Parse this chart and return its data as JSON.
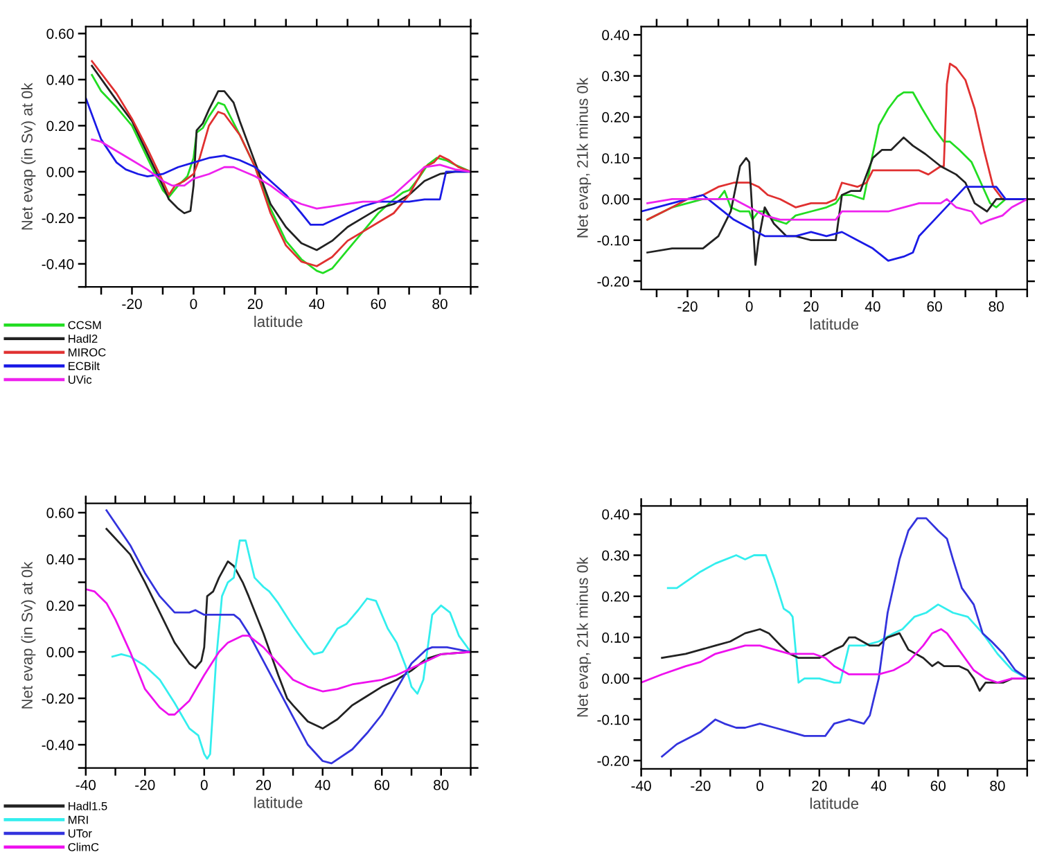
{
  "chart_data": [
    {
      "type": "line",
      "xlabel": "latitude",
      "ylabel": "Net evap (in Sv) at 0k",
      "xlim": [
        -35,
        90
      ],
      "ylim": [
        -0.5,
        0.63
      ],
      "xticks": [
        {
          "value": -30,
          "label": null
        },
        -20,
        {
          "value": -10,
          "label": null
        },
        0,
        {
          "value": 10,
          "label": null
        },
        20,
        {
          "value": 30,
          "label": null
        },
        40,
        {
          "value": 50,
          "label": null
        },
        60,
        {
          "value": 70,
          "label": null
        },
        80,
        {
          "value": 90,
          "label": null
        }
      ],
      "yticks": [
        {
          "value": -0.5,
          "label": null
        },
        {
          "value": -0.4,
          "label": "-0.40"
        },
        {
          "value": -0.3,
          "label": null
        },
        {
          "value": -0.2,
          "label": "-0.20"
        },
        {
          "value": -0.1,
          "label": null
        },
        {
          "value": 0,
          "label": "0.00"
        },
        {
          "value": 0.1,
          "label": null
        },
        {
          "value": 0.2,
          "label": "0.20"
        },
        {
          "value": 0.3,
          "label": null
        },
        {
          "value": 0.4,
          "label": "0.40"
        },
        {
          "value": 0.5,
          "label": null
        },
        {
          "value": 0.6,
          "label": "0.60"
        }
      ],
      "legend": "bottom left",
      "series": [
        {
          "name": "CCSM",
          "color": "#22dd22",
          "x": [
            -33,
            -30,
            -25,
            -20,
            -15,
            -10,
            -8,
            -5,
            -2,
            0,
            1,
            3,
            5,
            8,
            10,
            15,
            20,
            25,
            30,
            35,
            40,
            42,
            45,
            50,
            55,
            60,
            65,
            68,
            70,
            73,
            76,
            79,
            82,
            85,
            90
          ],
          "values": [
            0.42,
            0.35,
            0.28,
            0.2,
            0.06,
            -0.08,
            -0.11,
            -0.06,
            -0.02,
            0.06,
            0.17,
            0.19,
            0.24,
            0.3,
            0.29,
            0.16,
            0.02,
            -0.16,
            -0.3,
            -0.38,
            -0.43,
            -0.44,
            -0.42,
            -0.34,
            -0.26,
            -0.18,
            -0.12,
            -0.09,
            -0.08,
            -0.03,
            0.03,
            0.06,
            0.05,
            0.03,
            0.0
          ]
        },
        {
          "name": "Hadl2",
          "color": "#222222",
          "x": [
            -33,
            -25,
            -20,
            -15,
            -10,
            -8,
            -5,
            -3,
            -1,
            0,
            1,
            3,
            5,
            8,
            10,
            13,
            15,
            20,
            25,
            30,
            35,
            40,
            45,
            50,
            55,
            60,
            65,
            70,
            75,
            80,
            85,
            90
          ],
          "values": [
            0.46,
            0.31,
            0.22,
            0.08,
            -0.06,
            -0.12,
            -0.16,
            -0.18,
            -0.17,
            -0.06,
            0.18,
            0.21,
            0.27,
            0.35,
            0.35,
            0.3,
            0.22,
            0.04,
            -0.14,
            -0.24,
            -0.31,
            -0.34,
            -0.3,
            -0.24,
            -0.2,
            -0.16,
            -0.14,
            -0.1,
            -0.04,
            -0.01,
            0.0,
            0.0
          ]
        },
        {
          "name": "MIROC",
          "color": "#e03030",
          "x": [
            -33,
            -25,
            -20,
            -15,
            -10,
            -8,
            -6,
            -3,
            0,
            2,
            5,
            8,
            10,
            15,
            20,
            25,
            30,
            35,
            40,
            45,
            50,
            55,
            60,
            65,
            70,
            75,
            78,
            80,
            83,
            86,
            90
          ],
          "values": [
            0.48,
            0.34,
            0.23,
            0.1,
            -0.04,
            -0.1,
            -0.06,
            -0.04,
            -0.01,
            0.06,
            0.2,
            0.26,
            0.25,
            0.16,
            0.02,
            -0.18,
            -0.32,
            -0.39,
            -0.41,
            -0.37,
            -0.3,
            -0.26,
            -0.22,
            -0.18,
            -0.1,
            0.02,
            0.04,
            0.07,
            0.05,
            0.02,
            0.0
          ]
        },
        {
          "name": "ECBilt",
          "color": "#1a1ae6",
          "x": [
            -35,
            -30,
            -25,
            -22,
            -18,
            -15,
            -10,
            -5,
            0,
            5,
            10,
            15,
            20,
            25,
            30,
            35,
            38,
            42,
            50,
            55,
            60,
            65,
            70,
            75,
            80,
            82,
            90
          ],
          "values": [
            0.32,
            0.14,
            0.04,
            0.01,
            -0.01,
            -0.02,
            -0.01,
            0.02,
            0.04,
            0.06,
            0.07,
            0.05,
            0.02,
            -0.04,
            -0.1,
            -0.18,
            -0.23,
            -0.23,
            -0.18,
            -0.15,
            -0.13,
            -0.13,
            -0.13,
            -0.12,
            -0.12,
            0.0,
            0.0
          ]
        },
        {
          "name": "UVic",
          "color": "#ee22ee",
          "x": [
            -33,
            -30,
            -25,
            -20,
            -15,
            -10,
            -7,
            -3,
            0,
            5,
            10,
            13,
            20,
            25,
            30,
            35,
            40,
            45,
            50,
            55,
            60,
            65,
            70,
            75,
            80,
            85,
            90
          ],
          "values": [
            0.14,
            0.13,
            0.09,
            0.05,
            0.01,
            -0.04,
            -0.06,
            -0.06,
            -0.03,
            -0.01,
            0.02,
            0.02,
            -0.02,
            -0.06,
            -0.11,
            -0.14,
            -0.16,
            -0.15,
            -0.14,
            -0.13,
            -0.13,
            -0.1,
            -0.04,
            0.02,
            0.03,
            0.01,
            0.0
          ]
        }
      ]
    },
    {
      "type": "line",
      "xlabel": "latitude",
      "ylabel": "Net evap, 21k minus 0k",
      "xlim": [
        -35,
        90
      ],
      "ylim": [
        -0.22,
        0.42
      ],
      "xticks": [
        {
          "value": -30,
          "label": null
        },
        -20,
        {
          "value": -10,
          "label": null
        },
        0,
        {
          "value": 10,
          "label": null
        },
        20,
        {
          "value": 30,
          "label": null
        },
        40,
        {
          "value": 50,
          "label": null
        },
        60,
        {
          "value": 70,
          "label": null
        },
        80,
        {
          "value": 90,
          "label": null
        }
      ],
      "yticks": [
        {
          "value": -0.2,
          "label": "-0.20"
        },
        {
          "value": -0.15,
          "label": null
        },
        {
          "value": -0.1,
          "label": "-0.10"
        },
        {
          "value": -0.05,
          "label": null
        },
        {
          "value": 0,
          "label": "0.00"
        },
        {
          "value": 0.05,
          "label": null
        },
        {
          "value": 0.1,
          "label": "0.10"
        },
        {
          "value": 0.15,
          "label": null
        },
        {
          "value": 0.2,
          "label": "0.20"
        },
        {
          "value": 0.25,
          "label": null
        },
        {
          "value": 0.3,
          "label": "0.30"
        },
        {
          "value": 0.35,
          "label": null
        },
        {
          "value": 0.4,
          "label": "0.40"
        }
      ],
      "series": [
        {
          "color": "#22dd22",
          "x": [
            -33,
            -25,
            -20,
            -15,
            -10,
            -8,
            -6,
            -3,
            0,
            1,
            3,
            5,
            8,
            12,
            15,
            20,
            25,
            28,
            30,
            33,
            37,
            40,
            42,
            45,
            48,
            50,
            53,
            56,
            60,
            63,
            65,
            68,
            72,
            75,
            78,
            80,
            83,
            90
          ],
          "values": [
            -0.05,
            -0.02,
            -0.01,
            0.0,
            0.0,
            0.02,
            -0.02,
            -0.03,
            -0.03,
            -0.05,
            -0.03,
            -0.03,
            -0.05,
            -0.06,
            -0.04,
            -0.03,
            -0.02,
            -0.01,
            0.01,
            0.01,
            0.0,
            0.11,
            0.18,
            0.22,
            0.25,
            0.26,
            0.26,
            0.22,
            0.17,
            0.14,
            0.14,
            0.12,
            0.09,
            0.04,
            -0.01,
            -0.02,
            0.0,
            0.0
          ]
        },
        {
          "color": "#e03030",
          "x": [
            -33,
            -25,
            -20,
            -15,
            -10,
            -5,
            0,
            3,
            6,
            10,
            15,
            20,
            25,
            28,
            30,
            35,
            38,
            40,
            45,
            50,
            55,
            58,
            62,
            63,
            64,
            65,
            67,
            70,
            73,
            76,
            79,
            82,
            90
          ],
          "values": [
            -0.05,
            -0.02,
            0.0,
            0.01,
            0.03,
            0.04,
            0.04,
            0.03,
            0.01,
            0.0,
            -0.02,
            -0.01,
            -0.01,
            0.0,
            0.04,
            0.03,
            0.04,
            0.07,
            0.07,
            0.07,
            0.07,
            0.06,
            0.08,
            0.08,
            0.28,
            0.33,
            0.32,
            0.29,
            0.22,
            0.12,
            0.03,
            0.0,
            0.0
          ]
        },
        {
          "color": "#222222",
          "x": [
            -33,
            -25,
            -20,
            -15,
            -10,
            -6,
            -3,
            -1,
            0,
            2,
            3,
            5,
            8,
            12,
            15,
            20,
            25,
            28,
            30,
            33,
            36,
            40,
            43,
            46,
            50,
            53,
            57,
            62,
            67,
            70,
            73,
            77,
            80,
            90
          ],
          "values": [
            -0.13,
            -0.12,
            -0.12,
            -0.12,
            -0.09,
            -0.03,
            0.08,
            0.1,
            0.09,
            -0.16,
            -0.1,
            -0.02,
            -0.06,
            -0.09,
            -0.09,
            -0.1,
            -0.1,
            -0.1,
            0.01,
            0.02,
            0.02,
            0.1,
            0.12,
            0.12,
            0.15,
            0.13,
            0.11,
            0.08,
            0.06,
            0.04,
            -0.01,
            -0.03,
            0.0,
            0.0
          ]
        },
        {
          "color": "#1a1ae6",
          "x": [
            -35,
            -30,
            -25,
            -20,
            -15,
            -10,
            -5,
            0,
            5,
            10,
            15,
            20,
            25,
            30,
            35,
            40,
            45,
            50,
            53,
            55,
            60,
            65,
            70,
            72,
            80,
            83,
            90
          ],
          "values": [
            -0.03,
            -0.02,
            -0.01,
            0.0,
            0.01,
            -0.02,
            -0.05,
            -0.07,
            -0.09,
            -0.09,
            -0.09,
            -0.08,
            -0.09,
            -0.08,
            -0.1,
            -0.12,
            -0.15,
            -0.14,
            -0.13,
            -0.09,
            -0.05,
            -0.01,
            0.03,
            0.03,
            0.03,
            0.0,
            0.0
          ]
        },
        {
          "color": "#ee22ee",
          "x": [
            -33,
            -25,
            -20,
            -15,
            -10,
            -5,
            0,
            5,
            10,
            15,
            20,
            25,
            28,
            30,
            40,
            45,
            50,
            55,
            60,
            62,
            64,
            67,
            72,
            75,
            78,
            82,
            85,
            90
          ],
          "values": [
            -0.01,
            0.0,
            0.0,
            0.0,
            0.0,
            0.0,
            -0.02,
            -0.04,
            -0.05,
            -0.05,
            -0.05,
            -0.05,
            -0.05,
            -0.03,
            -0.03,
            -0.03,
            -0.02,
            -0.01,
            -0.01,
            -0.01,
            0.0,
            -0.02,
            -0.03,
            -0.06,
            -0.05,
            -0.04,
            -0.02,
            0.0
          ]
        }
      ]
    },
    {
      "type": "line",
      "xlabel": "latitude",
      "ylabel": "Net evap (in Sv) at 0k",
      "xlim": [
        -40,
        90
      ],
      "ylim": [
        -0.5,
        0.64
      ],
      "xticks": [
        -40,
        {
          "value": -30,
          "label": null
        },
        -20,
        {
          "value": -10,
          "label": null
        },
        0,
        {
          "value": 10,
          "label": null
        },
        20,
        {
          "value": 30,
          "label": null
        },
        40,
        {
          "value": 50,
          "label": null
        },
        60,
        {
          "value": 70,
          "label": null
        },
        80,
        {
          "value": 90,
          "label": null
        }
      ],
      "yticks": [
        {
          "value": -0.5,
          "label": null
        },
        {
          "value": -0.4,
          "label": "-0.40"
        },
        {
          "value": -0.3,
          "label": null
        },
        {
          "value": -0.2,
          "label": "-0.20"
        },
        {
          "value": -0.1,
          "label": null
        },
        {
          "value": 0,
          "label": "0.00"
        },
        {
          "value": 0.1,
          "label": null
        },
        {
          "value": 0.2,
          "label": "0.20"
        },
        {
          "value": 0.3,
          "label": null
        },
        {
          "value": 0.4,
          "label": "0.40"
        },
        {
          "value": 0.5,
          "label": null
        },
        {
          "value": 0.6,
          "label": "0.60"
        }
      ],
      "legend": "bottom left",
      "series": [
        {
          "name": "Hadl1.5",
          "color": "#222222",
          "x": [
            -33,
            -25,
            -20,
            -15,
            -10,
            -5,
            -3,
            -1,
            0,
            1,
            3,
            5,
            8,
            10,
            13,
            15,
            20,
            25,
            28,
            30,
            35,
            40,
            45,
            50,
            55,
            60,
            65,
            70,
            75,
            80,
            90
          ],
          "values": [
            0.53,
            0.42,
            0.3,
            0.17,
            0.04,
            -0.05,
            -0.07,
            -0.04,
            0.02,
            0.24,
            0.26,
            0.32,
            0.39,
            0.37,
            0.3,
            0.24,
            0.08,
            -0.1,
            -0.2,
            -0.23,
            -0.3,
            -0.33,
            -0.29,
            -0.23,
            -0.19,
            -0.15,
            -0.12,
            -0.08,
            -0.03,
            -0.01,
            0.0
          ]
        },
        {
          "name": "MRI",
          "color": "#33eeee",
          "x": [
            -31,
            -28,
            -25,
            -20,
            -15,
            -10,
            -5,
            -2,
            0,
            1,
            2,
            4,
            6,
            8,
            10,
            12,
            14,
            17,
            20,
            22,
            25,
            30,
            35,
            37,
            40,
            45,
            48,
            52,
            55,
            58,
            62,
            65,
            68,
            70,
            72,
            74,
            77,
            80,
            83,
            86,
            90
          ],
          "values": [
            -0.02,
            -0.01,
            -0.02,
            -0.06,
            -0.12,
            -0.22,
            -0.33,
            -0.36,
            -0.44,
            -0.46,
            -0.44,
            -0.04,
            0.24,
            0.3,
            0.32,
            0.48,
            0.48,
            0.32,
            0.28,
            0.26,
            0.21,
            0.11,
            0.02,
            -0.01,
            0.0,
            0.1,
            0.12,
            0.18,
            0.23,
            0.22,
            0.1,
            0.04,
            -0.06,
            -0.15,
            -0.18,
            -0.12,
            0.16,
            0.2,
            0.17,
            0.07,
            0.0
          ]
        },
        {
          "name": "UTor",
          "color": "#3333dd",
          "x": [
            -33,
            -25,
            -20,
            -15,
            -10,
            -5,
            -3,
            0,
            5,
            10,
            12,
            15,
            20,
            25,
            30,
            35,
            40,
            43,
            50,
            55,
            60,
            65,
            70,
            75,
            77,
            82,
            90
          ],
          "values": [
            0.61,
            0.46,
            0.34,
            0.24,
            0.17,
            0.17,
            0.18,
            0.16,
            0.16,
            0.16,
            0.14,
            0.08,
            -0.04,
            -0.16,
            -0.28,
            -0.4,
            -0.47,
            -0.48,
            -0.42,
            -0.35,
            -0.27,
            -0.16,
            -0.05,
            0.01,
            0.02,
            0.02,
            0.0
          ]
        },
        {
          "name": "ClimC",
          "color": "#ee11ee",
          "x": [
            -40,
            -37,
            -33,
            -30,
            -25,
            -20,
            -15,
            -12,
            -10,
            -5,
            0,
            5,
            8,
            13,
            15,
            20,
            25,
            30,
            35,
            40,
            45,
            50,
            55,
            60,
            65,
            70,
            75,
            80,
            90
          ],
          "values": [
            0.27,
            0.26,
            0.21,
            0.14,
            0.0,
            -0.16,
            -0.24,
            -0.27,
            -0.27,
            -0.21,
            -0.1,
            0.0,
            0.04,
            0.07,
            0.07,
            0.02,
            -0.05,
            -0.12,
            -0.15,
            -0.17,
            -0.16,
            -0.14,
            -0.13,
            -0.12,
            -0.1,
            -0.07,
            -0.04,
            -0.01,
            0.0
          ]
        }
      ]
    },
    {
      "type": "line",
      "xlabel": "latitude",
      "ylabel": "Net evap, 21k minus 0k",
      "xlim": [
        -40,
        90
      ],
      "ylim": [
        -0.22,
        0.42
      ],
      "xticks": [
        -40,
        {
          "value": -30,
          "label": null
        },
        -20,
        {
          "value": -10,
          "label": null
        },
        0,
        {
          "value": 10,
          "label": null
        },
        20,
        {
          "value": 30,
          "label": null
        },
        40,
        {
          "value": 50,
          "label": null
        },
        60,
        {
          "value": 70,
          "label": null
        },
        80,
        {
          "value": 90,
          "label": null
        }
      ],
      "yticks": [
        {
          "value": -0.2,
          "label": "-0.20"
        },
        {
          "value": -0.15,
          "label": null
        },
        {
          "value": -0.1,
          "label": "-0.10"
        },
        {
          "value": -0.05,
          "label": null
        },
        {
          "value": 0,
          "label": "0.00"
        },
        {
          "value": 0.05,
          "label": null
        },
        {
          "value": 0.1,
          "label": "0.10"
        },
        {
          "value": 0.15,
          "label": null
        },
        {
          "value": 0.2,
          "label": "0.20"
        },
        {
          "value": 0.25,
          "label": null
        },
        {
          "value": 0.3,
          "label": "0.30"
        },
        {
          "value": 0.35,
          "label": null
        },
        {
          "value": 0.4,
          "label": "0.40"
        }
      ],
      "series": [
        {
          "color": "#33eeee",
          "x": [
            -31,
            -28,
            -20,
            -15,
            -8,
            -5,
            -2,
            2,
            5,
            8,
            10,
            11,
            13,
            15,
            20,
            25,
            27,
            30,
            35,
            40,
            45,
            48,
            52,
            56,
            60,
            65,
            70,
            75,
            80,
            85,
            90
          ],
          "values": [
            0.22,
            0.22,
            0.26,
            0.28,
            0.3,
            0.29,
            0.3,
            0.3,
            0.24,
            0.17,
            0.16,
            0.15,
            -0.01,
            0.0,
            0.0,
            -0.01,
            -0.01,
            0.08,
            0.08,
            0.09,
            0.11,
            0.12,
            0.15,
            0.16,
            0.18,
            0.16,
            0.15,
            0.11,
            0.06,
            0.02,
            0.0
          ]
        },
        {
          "color": "#222222",
          "x": [
            -33,
            -25,
            -20,
            -15,
            -10,
            -5,
            0,
            3,
            7,
            10,
            13,
            20,
            25,
            28,
            30,
            32,
            37,
            40,
            43,
            47,
            50,
            55,
            58,
            60,
            62,
            67,
            70,
            72,
            74,
            76,
            80,
            82,
            85,
            90
          ],
          "values": [
            0.05,
            0.06,
            0.07,
            0.08,
            0.09,
            0.11,
            0.12,
            0.11,
            0.08,
            0.06,
            0.05,
            0.05,
            0.07,
            0.08,
            0.1,
            0.1,
            0.08,
            0.08,
            0.1,
            0.11,
            0.07,
            0.05,
            0.03,
            0.04,
            0.03,
            0.03,
            0.02,
            0.0,
            -0.03,
            -0.01,
            -0.01,
            -0.01,
            0.0,
            0.0
          ]
        },
        {
          "color": "#3333dd",
          "x": [
            -33,
            -28,
            -20,
            -15,
            -12,
            -8,
            -5,
            0,
            5,
            10,
            15,
            20,
            22,
            25,
            30,
            35,
            37,
            40,
            43,
            47,
            50,
            53,
            56,
            60,
            63,
            65,
            68,
            72,
            75,
            78,
            82,
            86,
            90
          ],
          "values": [
            -0.19,
            -0.16,
            -0.13,
            -0.1,
            -0.11,
            -0.12,
            -0.12,
            -0.11,
            -0.12,
            -0.13,
            -0.14,
            -0.14,
            -0.14,
            -0.11,
            -0.1,
            -0.11,
            -0.09,
            0.0,
            0.16,
            0.29,
            0.36,
            0.39,
            0.39,
            0.36,
            0.34,
            0.29,
            0.22,
            0.18,
            0.11,
            0.09,
            0.06,
            0.02,
            0.0
          ]
        },
        {
          "color": "#ee11ee",
          "x": [
            -40,
            -33,
            -25,
            -20,
            -15,
            -10,
            -5,
            0,
            5,
            10,
            15,
            18,
            22,
            25,
            30,
            35,
            40,
            45,
            50,
            55,
            58,
            61,
            63,
            67,
            72,
            76,
            80,
            85,
            90
          ],
          "values": [
            -0.01,
            0.01,
            0.03,
            0.04,
            0.06,
            0.07,
            0.08,
            0.08,
            0.07,
            0.06,
            0.06,
            0.06,
            0.05,
            0.03,
            0.01,
            0.01,
            0.01,
            0.02,
            0.04,
            0.08,
            0.11,
            0.12,
            0.11,
            0.07,
            0.02,
            0.0,
            -0.01,
            0.0,
            0.0
          ]
        }
      ]
    }
  ]
}
